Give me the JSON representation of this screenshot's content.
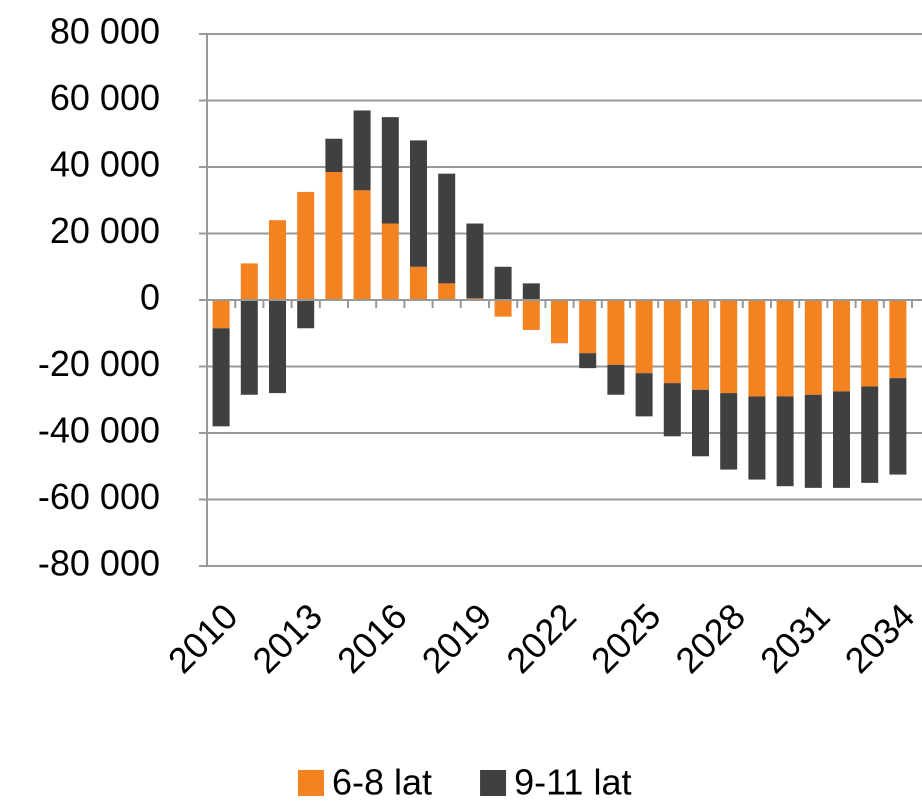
{
  "chart_data": {
    "type": "stacked_bar",
    "categories": [
      "2010",
      null,
      null,
      "2013",
      null,
      null,
      "2016",
      null,
      null,
      "2019",
      null,
      null,
      "2022",
      null,
      null,
      "2025",
      null,
      null,
      "2028",
      null,
      null,
      "2031",
      null,
      null,
      "2034"
    ],
    "series": [
      {
        "name": "6-8 lat",
        "color": "#f58220",
        "values": [
          -8500,
          11000,
          24000,
          32500,
          38500,
          33000,
          23000,
          10000,
          5000,
          500,
          -5000,
          -9000,
          -13000,
          -16000,
          -19500,
          -22000,
          -25000,
          -27000,
          -28000,
          -29000,
          -29000,
          -28500,
          -27500,
          -26000,
          -23500
        ]
      },
      {
        "name": "9-11 lat",
        "color": "#404040",
        "values": [
          -29500,
          -28500,
          -28000,
          -8500,
          10000,
          24000,
          32000,
          38000,
          33000,
          22500,
          10000,
          5000,
          0,
          -4500,
          -9000,
          -13000,
          -16000,
          -20000,
          -23000,
          -25000,
          -27000,
          -28000,
          -29000,
          -29000,
          -29000
        ]
      }
    ],
    "ylim": [
      -80000,
      80000
    ],
    "yticks": [
      {
        "value": -80000,
        "label": "-80 000"
      },
      {
        "value": -60000,
        "label": "-60 000"
      },
      {
        "value": -40000,
        "label": "-40 000"
      },
      {
        "value": -20000,
        "label": "-20 000"
      },
      0,
      {
        "value": 20000,
        "label": "20 000"
      },
      {
        "value": 40000,
        "label": "40 000"
      },
      {
        "value": 60000,
        "label": "60 000"
      },
      {
        "value": 80000,
        "label": "80 000"
      }
    ],
    "grid": true,
    "legend": "bottom"
  }
}
